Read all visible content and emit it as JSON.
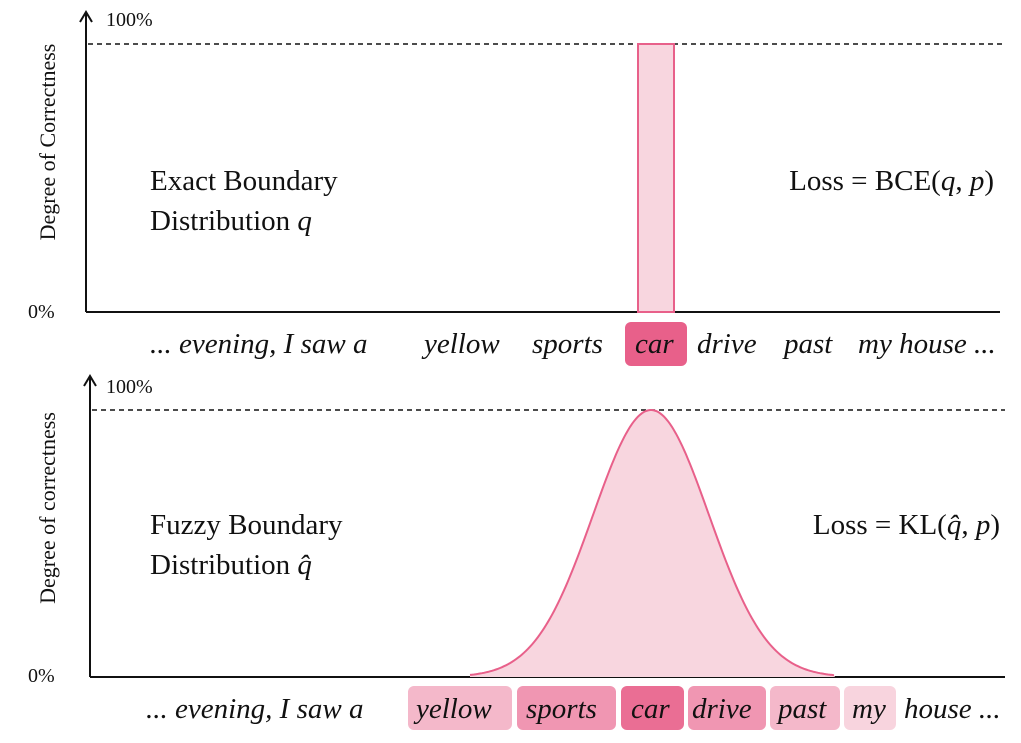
{
  "colors": {
    "accent": "#e8608a",
    "fill_light": "#f8d6df",
    "axis": "#111111"
  },
  "top_panel": {
    "ylabel": "Degree of Correctness",
    "y_max_label": "100%",
    "y_min_label": "0%",
    "dist_label_line1": "Exact Boundary",
    "dist_label_line2": "Distribution",
    "dist_symbol": "q",
    "loss_prefix": "Loss = BCE(",
    "loss_q": "q",
    "loss_sep": ", ",
    "loss_p": "p",
    "loss_suffix": ")",
    "sentence_prefix": "... evening, I saw a",
    "tokens": [
      {
        "text": "yellow",
        "weight": 0
      },
      {
        "text": "sports",
        "weight": 0
      },
      {
        "text": "car",
        "weight": 1
      },
      {
        "text": "drive",
        "weight": 0
      },
      {
        "text": "past",
        "weight": 0
      },
      {
        "text": "my house ...",
        "weight": 0
      }
    ]
  },
  "bottom_panel": {
    "ylabel": "Degree of correctness",
    "y_max_label": "100%",
    "y_min_label": "0%",
    "dist_label_line1": "Fuzzy Boundary",
    "dist_label_line2": "Distribution",
    "dist_symbol": "q̂",
    "loss_prefix": "Loss = KL(",
    "loss_q": "q̂",
    "loss_sep": ", ",
    "loss_p": "p",
    "loss_suffix": ")",
    "sentence_prefix": "... evening, I saw a",
    "tokens": [
      {
        "text": "yellow",
        "weight": 0.35
      },
      {
        "text": "sports",
        "weight": 0.6
      },
      {
        "text": "car",
        "weight": 0.9
      },
      {
        "text": "drive",
        "weight": 0.6
      },
      {
        "text": "past",
        "weight": 0.35
      },
      {
        "text": "my",
        "weight": 0.15
      },
      {
        "text": "house ...",
        "weight": 0
      }
    ]
  }
}
